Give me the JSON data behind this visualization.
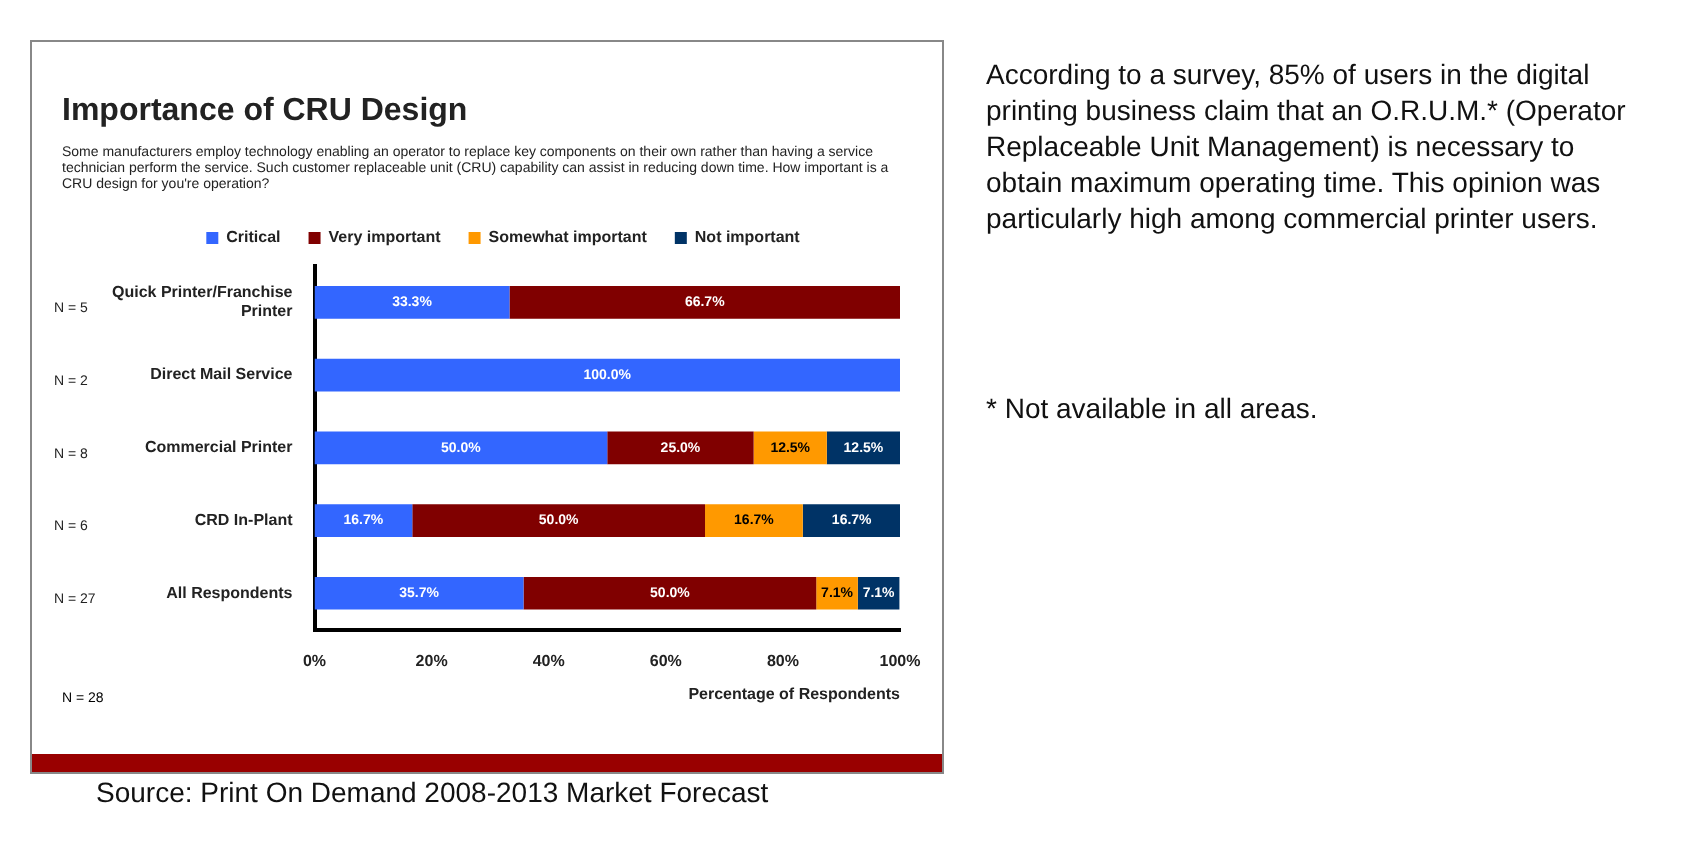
{
  "chart_data": {
    "type": "bar",
    "orientation": "horizontal",
    "stacked": true,
    "title": "Importance of CRU Design",
    "subtitle": "Some manufacturers employ technology enabling an operator to replace key components on their own rather than having a service technician perform the service. Such customer replaceable unit (CRU) capability can assist in reducing down time. How important is a CRU design for you're operation?",
    "categories": [
      "Quick Printer/Franchise Printer",
      "Direct Mail Service",
      "Commercial Printer",
      "CRD In-Plant",
      "All Respondents"
    ],
    "series": [
      {
        "name": "Critical",
        "color": "#3366ff",
        "values": [
          33.3,
          100,
          50,
          16.7,
          35.7
        ],
        "value_labels": [
          "33.3%",
          "100.0%",
          "50.0%",
          "16.7%",
          "35.7%"
        ]
      },
      {
        "name": "Very important",
        "color": "#800000",
        "values": [
          66.7,
          null,
          25,
          50,
          50
        ],
        "value_labels": [
          "66.7%",
          null,
          "25.0%",
          "50.0%",
          "50.0%"
        ]
      },
      {
        "name": "Somewhat important",
        "color": "#ff9900",
        "values": [
          null,
          null,
          12.5,
          16.7,
          7.1
        ],
        "value_labels": [
          null,
          null,
          "12.5%",
          "16.7%",
          "7.1%"
        ]
      },
      {
        "name": "Not important",
        "color": "#003366",
        "values": [
          null,
          null,
          12.5,
          16.7,
          7.1
        ],
        "value_labels": [
          null,
          null,
          "12.5%",
          "16.7%",
          "7.1%"
        ]
      }
    ],
    "xlim": [
      0,
      100
    ],
    "xticks": [
      {
        "value": 0,
        "label": "0%"
      },
      {
        "value": 20,
        "label": "20%"
      },
      {
        "value": 40,
        "label": "40%"
      },
      {
        "value": 60,
        "label": "60%"
      },
      {
        "value": 80,
        "label": "80%"
      },
      {
        "value": 100,
        "label": "100%"
      }
    ],
    "xlabel": "Percentage of Respondents",
    "grid": false,
    "legend": "top",
    "annotations": [
      "N = 5",
      "N = 2",
      "N = 8",
      "N = 6",
      "N = 27",
      "N = 28",
      "According to a survey, 85% of users in the digital printing business claim that an O.R.U.M.* (Operator Replaceable Unit Management) is necessary to obtain maximum operating time. This opinion was particularly high among commercial printer users.",
      "* Not available in all areas.",
      "Source: Print On Demand 2008-2013 Market Forecast"
    ]
  }
}
